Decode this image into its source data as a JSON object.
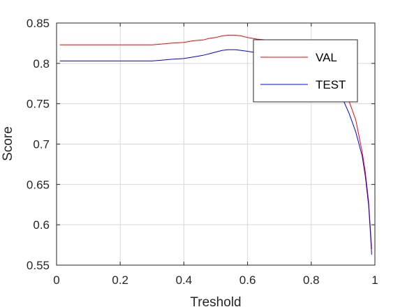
{
  "chart_data": {
    "type": "line",
    "xlabel": "Treshold",
    "ylabel": "Score",
    "xlim": [
      0,
      1
    ],
    "ylim": [
      0.55,
      0.85
    ],
    "xticks": [
      0,
      0.2,
      0.4,
      0.6,
      0.8,
      1
    ],
    "xtick_labels": [
      "0",
      "0.2",
      "0.4",
      "0.6",
      "0.8",
      "1"
    ],
    "yticks": [
      0.55,
      0.6,
      0.65,
      0.7,
      0.75,
      0.8,
      0.85
    ],
    "ytick_labels": [
      "0.55",
      "0.6",
      "0.65",
      "0.7",
      "0.75",
      "0.8",
      "0.85"
    ],
    "grid": true,
    "legend_position": "top-right",
    "series": [
      {
        "name": "VAL",
        "color": "#ff0000",
        "x": [
          0.01,
          0.05,
          0.1,
          0.15,
          0.2,
          0.25,
          0.3,
          0.33,
          0.36,
          0.4,
          0.43,
          0.46,
          0.48,
          0.5,
          0.52,
          0.54,
          0.56,
          0.58,
          0.6,
          0.63,
          0.66,
          0.7,
          0.73,
          0.76,
          0.8,
          0.84,
          0.87,
          0.9,
          0.92,
          0.94,
          0.96,
          0.97,
          0.98,
          0.985,
          0.99
        ],
        "y": [
          0.823,
          0.823,
          0.823,
          0.823,
          0.823,
          0.823,
          0.823,
          0.824,
          0.825,
          0.826,
          0.828,
          0.829,
          0.831,
          0.832,
          0.834,
          0.835,
          0.835,
          0.834,
          0.832,
          0.83,
          0.829,
          0.827,
          0.825,
          0.822,
          0.816,
          0.805,
          0.79,
          0.77,
          0.752,
          0.73,
          0.69,
          0.665,
          0.63,
          0.6,
          0.57
        ]
      },
      {
        "name": "TEST",
        "color": "#0000ff",
        "x": [
          0.01,
          0.05,
          0.1,
          0.15,
          0.2,
          0.25,
          0.3,
          0.33,
          0.36,
          0.4,
          0.43,
          0.46,
          0.48,
          0.5,
          0.52,
          0.54,
          0.56,
          0.58,
          0.6,
          0.63,
          0.66,
          0.7,
          0.73,
          0.76,
          0.8,
          0.84,
          0.87,
          0.9,
          0.92,
          0.94,
          0.96,
          0.97,
          0.98,
          0.985,
          0.99
        ],
        "y": [
          0.803,
          0.803,
          0.803,
          0.803,
          0.803,
          0.803,
          0.803,
          0.804,
          0.805,
          0.806,
          0.808,
          0.81,
          0.812,
          0.814,
          0.816,
          0.817,
          0.817,
          0.816,
          0.815,
          0.813,
          0.811,
          0.808,
          0.805,
          0.8,
          0.795,
          0.785,
          0.772,
          0.755,
          0.737,
          0.715,
          0.685,
          0.66,
          0.625,
          0.595,
          0.563
        ]
      }
    ]
  }
}
